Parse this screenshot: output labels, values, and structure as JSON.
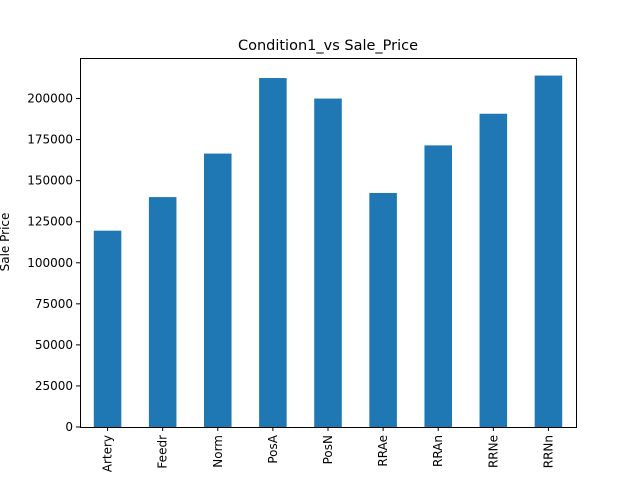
{
  "chart_data": {
    "type": "bar",
    "title": "Condition1_vs Sale_Price",
    "xlabel": "",
    "ylabel": "Sale Price",
    "categories": [
      "Artery",
      "Feedr",
      "Norm",
      "PosA",
      "PosN",
      "RRAe",
      "RRAn",
      "RRNe",
      "RRNn"
    ],
    "values": [
      119550,
      140000,
      166500,
      212500,
      200000,
      142500,
      171495,
      190750,
      214000
    ],
    "yticks": [
      0,
      25000,
      50000,
      75000,
      100000,
      125000,
      150000,
      175000,
      200000
    ],
    "ylim": [
      0,
      224700
    ],
    "grid": false,
    "legend": "none",
    "bar_color": "#1f77b4"
  }
}
